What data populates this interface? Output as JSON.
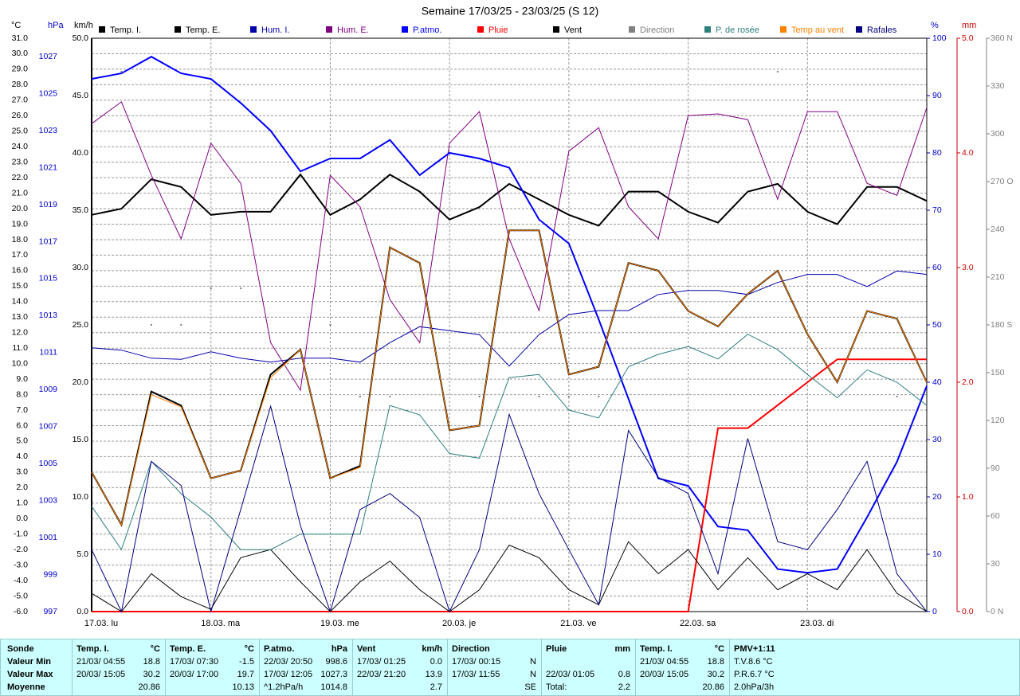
{
  "chart_data": {
    "type": "line",
    "title": "Semaine 17/03/25 - 23/03/25 (S 12)",
    "x": [
      0,
      6,
      12,
      18,
      24,
      30,
      36,
      42,
      48,
      54,
      60,
      66,
      72,
      78,
      84,
      90,
      96,
      102,
      108,
      114,
      120,
      126,
      132,
      138,
      144,
      150,
      156,
      162,
      168
    ],
    "xlim": [
      0,
      168
    ],
    "xticks": [
      {
        "value": 0,
        "label": "17.03. lu"
      },
      {
        "value": 24,
        "label": "18.03. ma"
      },
      {
        "value": 48,
        "label": "19.03. me"
      },
      {
        "value": 72,
        "label": "20.03. je"
      },
      {
        "value": 96,
        "label": "21.03. ve"
      },
      {
        "value": 120,
        "label": "22.03. sa"
      },
      {
        "value": 144,
        "label": "23.03. di"
      }
    ],
    "grid": true,
    "axes": {
      "c": {
        "label": "°C",
        "color": "#000000",
        "side": "left",
        "lim": [
          -6,
          31
        ],
        "ticks": [
          {
            "value": -6,
            "label": "-6.0"
          },
          {
            "value": -5,
            "label": "-5.0"
          },
          {
            "value": -4,
            "label": "-4.0"
          },
          {
            "value": -3,
            "label": "-3.0"
          },
          {
            "value": -2,
            "label": "-2.0"
          },
          {
            "value": -1,
            "label": "-1.0"
          },
          {
            "value": 0,
            "label": "0.0"
          },
          {
            "value": 1,
            "label": "1.0"
          },
          {
            "value": 2,
            "label": "2.0"
          },
          {
            "value": 3,
            "label": "3.0"
          },
          {
            "value": 4,
            "label": "4.0"
          },
          {
            "value": 5,
            "label": "5.0"
          },
          {
            "value": 6,
            "label": "6.0"
          },
          {
            "value": 7,
            "label": "7.0"
          },
          {
            "value": 8,
            "label": "8.0"
          },
          {
            "value": 9,
            "label": "9.0"
          },
          {
            "value": 10,
            "label": "10.0"
          },
          {
            "value": 11,
            "label": "11.0"
          },
          {
            "value": 12,
            "label": "12.0"
          },
          {
            "value": 13,
            "label": "13.0"
          },
          {
            "value": 14,
            "label": "14.0"
          },
          {
            "value": 15,
            "label": "15.0"
          },
          {
            "value": 16,
            "label": "16.0"
          },
          {
            "value": 17,
            "label": "17.0"
          },
          {
            "value": 18,
            "label": "18.0"
          },
          {
            "value": 19,
            "label": "19.0"
          },
          {
            "value": 20,
            "label": "20.0"
          },
          {
            "value": 21,
            "label": "21.0"
          },
          {
            "value": 22,
            "label": "22.0"
          },
          {
            "value": 23,
            "label": "23.0"
          },
          {
            "value": 24,
            "label": "24.0"
          },
          {
            "value": 25,
            "label": "25.0"
          },
          {
            "value": 26,
            "label": "26.0"
          },
          {
            "value": 27,
            "label": "27.0"
          },
          {
            "value": 28,
            "label": "28.0"
          },
          {
            "value": 29,
            "label": "29.0"
          },
          {
            "value": 30,
            "label": "30.0"
          },
          {
            "value": 31,
            "label": "31.0"
          }
        ]
      },
      "hpa": {
        "label": "hPa",
        "color": "#0000cc",
        "side": "left",
        "lim": [
          997,
          1028
        ],
        "ticks": [
          997,
          999,
          1001,
          1003,
          1005,
          1007,
          1009,
          1011,
          1013,
          1015,
          1017,
          1019,
          1021,
          1023,
          1025,
          1027
        ]
      },
      "kmh": {
        "label": "km/h",
        "color": "#000000",
        "side": "left",
        "lim": [
          0,
          50
        ],
        "ticks": [
          {
            "value": 0,
            "label": "0.0"
          },
          {
            "value": 5,
            "label": "5.0"
          },
          {
            "value": 10,
            "label": "10.0"
          },
          {
            "value": 15,
            "label": "15.0"
          },
          {
            "value": 20,
            "label": "20.0"
          },
          {
            "value": 25,
            "label": "25.0"
          },
          {
            "value": 30,
            "label": "30.0"
          },
          {
            "value": 35,
            "label": "35.0"
          },
          {
            "value": 40,
            "label": "40.0"
          },
          {
            "value": 45,
            "label": "45.0"
          },
          {
            "value": 50,
            "label": "50.0"
          }
        ]
      },
      "pct": {
        "label": "%",
        "color": "#0000cc",
        "side": "right",
        "lim": [
          0,
          100
        ],
        "ticks": [
          0,
          10,
          20,
          30,
          40,
          50,
          60,
          70,
          80,
          90,
          100
        ]
      },
      "mm": {
        "label": "mm",
        "color": "#cc0000",
        "side": "right",
        "lim": [
          0,
          5
        ],
        "ticks": [
          {
            "value": 0,
            "label": "0.0"
          },
          {
            "value": 1,
            "label": "1.0"
          },
          {
            "value": 2,
            "label": "2.0"
          },
          {
            "value": 3,
            "label": "3.0"
          },
          {
            "value": 4,
            "label": "4.0"
          },
          {
            "value": 5,
            "label": "5.0"
          }
        ]
      },
      "dir": {
        "color": "#808080",
        "side": "right",
        "lim": [
          0,
          360
        ],
        "ticks": [
          {
            "value": 0,
            "label": "0 N"
          },
          30,
          60,
          90,
          120,
          150,
          {
            "value": 180,
            "label": "180 S"
          },
          210,
          240,
          {
            "value": 270,
            "label": "270 O"
          },
          300,
          330,
          {
            "value": 360,
            "label": "360 N"
          }
        ]
      }
    },
    "series": [
      {
        "name": "Temp. I.",
        "color": "#000000",
        "axis": "c",
        "width": 2,
        "values": [
          19.6,
          20.0,
          21.9,
          21.4,
          19.6,
          19.8,
          19.8,
          22.2,
          19.6,
          20.6,
          22.2,
          21.1,
          19.3,
          20.1,
          21.6,
          20.6,
          19.6,
          18.9,
          21.1,
          21.1,
          19.8,
          19.1,
          21.1,
          21.6,
          19.8,
          19.0,
          21.4,
          21.4,
          20.5
        ]
      },
      {
        "name": "Temp. E.",
        "color": "#000000",
        "axis": "c",
        "width": 2,
        "values": [
          3.0,
          -0.4,
          8.2,
          7.3,
          2.6,
          3.1,
          9.3,
          10.9,
          2.6,
          3.4,
          17.5,
          16.5,
          5.7,
          6.0,
          18.6,
          18.6,
          9.3,
          9.8,
          16.5,
          16.0,
          13.4,
          12.4,
          14.5,
          16.0,
          11.9,
          8.8,
          13.4,
          12.9,
          8.8
        ]
      },
      {
        "name": "Hum. I.",
        "color": "#0000aa",
        "axis": "pct",
        "width": 1,
        "values": [
          46,
          45.6,
          44.2,
          44,
          45.3,
          44.2,
          43.5,
          44.2,
          44.2,
          43.5,
          46.9,
          49.7,
          49,
          48.3,
          42.8,
          48.3,
          51.8,
          52.5,
          52.5,
          55.3,
          56,
          56,
          55.3,
          57.4,
          58.8,
          58.8,
          56.7,
          59.4,
          58.8
        ]
      },
      {
        "name": "Hum. E.",
        "color": "#800080",
        "axis": "pct",
        "width": 1,
        "values": [
          85.1,
          88.9,
          76.1,
          65,
          81.7,
          74.7,
          46.9,
          38.6,
          76.1,
          70.6,
          54.4,
          46.9,
          81.7,
          87.2,
          65,
          52.5,
          80.3,
          84.4,
          70.6,
          65,
          86.5,
          86.8,
          85.8,
          71.9,
          87.2,
          87.2,
          74.7,
          72.6,
          87.9
        ]
      },
      {
        "name": "P.atmo.",
        "color": "#0000ff",
        "axis": "hpa",
        "width": 2,
        "values": [
          1025.8,
          1026.1,
          1027.0,
          1026.1,
          1025.8,
          1024.5,
          1023.0,
          1020.8,
          1021.5,
          1021.5,
          1022.5,
          1020.6,
          1021.8,
          1021.5,
          1021.0,
          1018.2,
          1016.9,
          1012.8,
          1008.5,
          1004.2,
          1003.8,
          1001.6,
          1001.4,
          999.3,
          999.1,
          999.3,
          1002.1,
          1005.1,
          1009.2
        ]
      },
      {
        "name": "Pluie",
        "color": "#ff0000",
        "axis": "mm",
        "width": 2,
        "values": [
          0,
          0,
          0,
          0,
          0,
          0,
          0,
          0,
          0,
          0,
          0,
          0,
          0,
          0,
          0,
          0,
          0,
          0,
          0,
          0,
          0,
          1.6,
          1.6,
          1.8,
          2.0,
          2.2,
          2.2,
          2.2,
          2.2
        ]
      },
      {
        "name": "Vent",
        "color": "#000000",
        "axis": "kmh",
        "width": 1,
        "values": [
          1.6,
          0,
          3.3,
          1.3,
          0.2,
          4.7,
          5.4,
          2.6,
          0,
          2.6,
          4.4,
          1.9,
          0,
          1.9,
          5.8,
          4.7,
          1.9,
          0.6,
          6.1,
          3.3,
          5.4,
          1.9,
          4.7,
          1.9,
          3.3,
          1.9,
          5.4,
          1.6,
          0
        ]
      },
      {
        "name": "Direction",
        "color": "#808080",
        "axis": "dir",
        "width": 0,
        "values": [
          null,
          339,
          180,
          180,
          203,
          203,
          null,
          null,
          180,
          135,
          135,
          null,
          null,
          135,
          null,
          135,
          135,
          135,
          null,
          null,
          null,
          null,
          null,
          339,
          null,
          null,
          null,
          135,
          null
        ]
      },
      {
        "name": "P. de rosée",
        "color": "#2f7f7f",
        "axis": "c",
        "width": 1,
        "values": [
          0.8,
          -2.0,
          3.7,
          1.6,
          0.1,
          -2.0,
          -2.0,
          -1.0,
          -1.0,
          -1.0,
          7.3,
          6.7,
          4.2,
          3.9,
          9.1,
          9.3,
          7.0,
          6.5,
          9.8,
          10.6,
          11.1,
          10.3,
          11.9,
          10.9,
          9.3,
          7.8,
          9.6,
          8.8,
          7.3
        ]
      },
      {
        "name": "Temp au vent",
        "color": "#ff8000",
        "axis": "c",
        "width": 1,
        "values": [
          3.0,
          -0.4,
          8.0,
          7.2,
          2.6,
          3.1,
          9.1,
          10.9,
          2.6,
          3.3,
          17.5,
          16.5,
          5.7,
          6.0,
          18.6,
          18.6,
          9.3,
          9.8,
          16.5,
          16.0,
          13.4,
          12.4,
          14.5,
          16.0,
          11.9,
          8.8,
          13.4,
          12.9,
          8.8
        ]
      },
      {
        "name": "Rafales",
        "color": "#000080",
        "axis": "kmh",
        "width": 1,
        "values": [
          5.4,
          0,
          13.1,
          11,
          0,
          8.9,
          17.9,
          7.5,
          0,
          8.9,
          10.3,
          8.2,
          0,
          5.4,
          17.2,
          10.3,
          5.4,
          0.6,
          15.8,
          11.7,
          10.3,
          3.3,
          15.1,
          6.1,
          5.4,
          8.9,
          13.1,
          3.3,
          0
        ]
      }
    ]
  },
  "summary": {
    "columns": [
      {
        "title": "Sonde",
        "rows": [
          [
            "Valeur Min"
          ],
          [
            "Valeur Max"
          ],
          [
            "Moyenne"
          ]
        ]
      },
      {
        "title": "Temp. I.",
        "unit": "°C",
        "rows": [
          [
            "21/03/ 04:55",
            "18.8"
          ],
          [
            "20/03/ 15:05",
            "30.2"
          ],
          [
            null,
            "20.86"
          ]
        ]
      },
      {
        "title": "Temp. E.",
        "unit": "°C",
        "rows": [
          [
            "17/03/ 07:30",
            "-1.5"
          ],
          [
            "20/03/ 17:00",
            "19.7"
          ],
          [
            null,
            "10.13"
          ]
        ]
      },
      {
        "title": "P.atmo.",
        "unit": "hPa",
        "rows": [
          [
            "22/03/ 20:50",
            "998.6"
          ],
          [
            "17/03/ 12:05",
            "1027.3"
          ],
          [
            "^1.2hPa/h",
            "1014.8"
          ]
        ]
      },
      {
        "title": "Vent",
        "unit": "km/h",
        "rows": [
          [
            "17/03/ 01:25",
            "0.0"
          ],
          [
            "22/03/ 21:20",
            "13.9"
          ],
          [
            null,
            "2.7"
          ]
        ]
      },
      {
        "title": "Direction",
        "rows": [
          [
            "17/03/ 00:15",
            "N"
          ],
          [
            "17/03/ 11:55",
            "N"
          ],
          [
            null,
            "SE"
          ]
        ]
      },
      {
        "title": "Pluie",
        "unit": "mm",
        "rows": [
          [
            null,
            null
          ],
          [
            "22/03/ 01:05",
            "0.8"
          ],
          [
            "Total:",
            "2.2"
          ]
        ]
      },
      {
        "title": "Temp. I.",
        "unit": "°C",
        "rows": [
          [
            "21/03/ 04:55",
            "18.8"
          ],
          [
            "20/03/ 15:05",
            "30.2"
          ],
          [
            null,
            "20.86"
          ]
        ]
      },
      {
        "title": "PMV+1:11",
        "rows": [
          [
            "T.V.8.6 °C"
          ],
          [
            "P.R.6.7 °C"
          ],
          [
            "2.0hPa/3h"
          ]
        ]
      }
    ]
  }
}
